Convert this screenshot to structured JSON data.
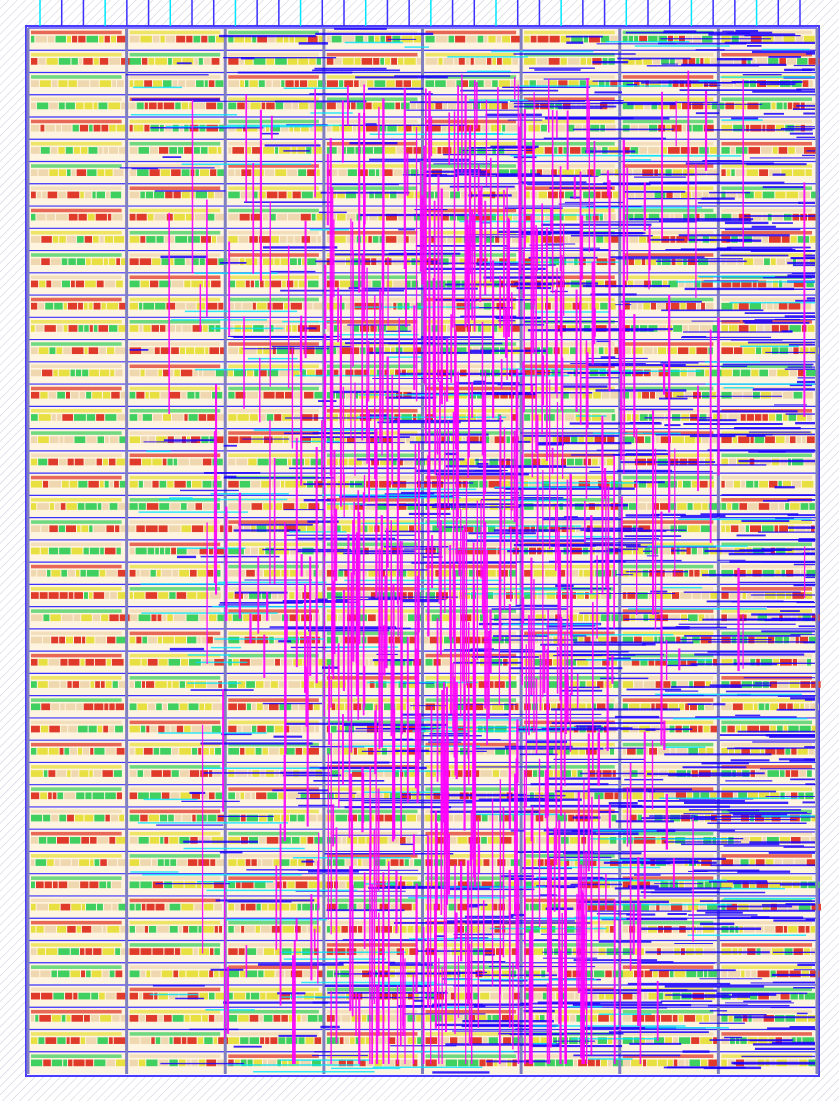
{
  "view": {
    "kind": "ic-layout-view",
    "standard_cell_rows": 47,
    "placement_columns": 8,
    "top_io_pins": 36,
    "layers": [
      {
        "name": "metal1-vertical",
        "color": "#ff00ff"
      },
      {
        "name": "metal2-horizontal",
        "color": "#1a00ff"
      },
      {
        "name": "metal3",
        "color": "#00e5ff"
      },
      {
        "name": "cell-fill-red",
        "color": "#e03a2a"
      },
      {
        "name": "cell-fill-yellow",
        "color": "#e8e040"
      },
      {
        "name": "cell-fill-green",
        "color": "#40d060"
      },
      {
        "name": "cell-fill-tan",
        "color": "#efd8b0"
      },
      {
        "name": "power-rail",
        "color": "#3a30ff"
      },
      {
        "name": "outline",
        "color": "#8080c0"
      }
    ]
  }
}
